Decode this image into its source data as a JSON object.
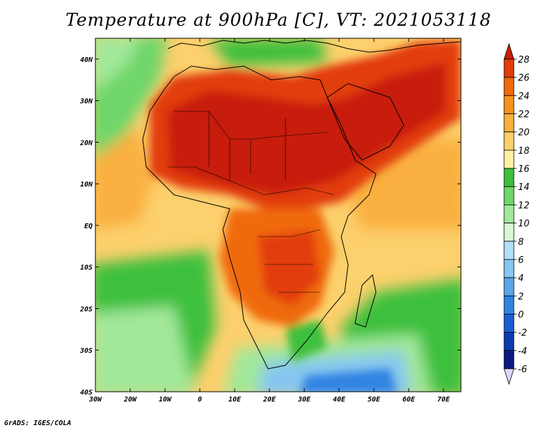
{
  "title": "Temperature at 900hPa [C], VT: 2021053118",
  "credit": "GrADS: IGES/COLA",
  "map": {
    "lon_range": [
      -30,
      75
    ],
    "lat_range": [
      -40,
      45
    ],
    "lon_ticks": [
      {
        "value": -30,
        "label": "30W"
      },
      {
        "value": -20,
        "label": "20W"
      },
      {
        "value": -10,
        "label": "10W"
      },
      {
        "value": 0,
        "label": "0"
      },
      {
        "value": 10,
        "label": "10E"
      },
      {
        "value": 20,
        "label": "20E"
      },
      {
        "value": 30,
        "label": "30E"
      },
      {
        "value": 40,
        "label": "40E"
      },
      {
        "value": 50,
        "label": "50E"
      },
      {
        "value": 60,
        "label": "60E"
      },
      {
        "value": 70,
        "label": "70E"
      }
    ],
    "lat_ticks": [
      {
        "value": 40,
        "label": "40N"
      },
      {
        "value": 30,
        "label": "30N"
      },
      {
        "value": 20,
        "label": "20N"
      },
      {
        "value": 10,
        "label": "10N"
      },
      {
        "value": 0,
        "label": "EQ"
      },
      {
        "value": -10,
        "label": "10S"
      },
      {
        "value": -20,
        "label": "20S"
      },
      {
        "value": -30,
        "label": "30S"
      },
      {
        "value": -40,
        "label": "40S"
      }
    ]
  },
  "colorbar": {
    "labels": [
      "28",
      "26",
      "24",
      "22",
      "20",
      "18",
      "16",
      "14",
      "12",
      "10",
      "8",
      "6",
      "4",
      "2",
      "0",
      "-2",
      "-4",
      "-6"
    ],
    "colors": [
      "#c81e08",
      "#e23c0a",
      "#f06a0e",
      "#f8921e",
      "#fab040",
      "#fcd06c",
      "#fdf0a2",
      "#3cc03c",
      "#6ed66a",
      "#a2e89a",
      "#d8f8d4",
      "#b0e0f8",
      "#86c6f0",
      "#5aa6ea",
      "#3084e2",
      "#1a5ed2",
      "#0c3ab0",
      "#0a1c80"
    ],
    "top_color": "#c81e08",
    "bottom_color": "#dcd8f8"
  }
}
